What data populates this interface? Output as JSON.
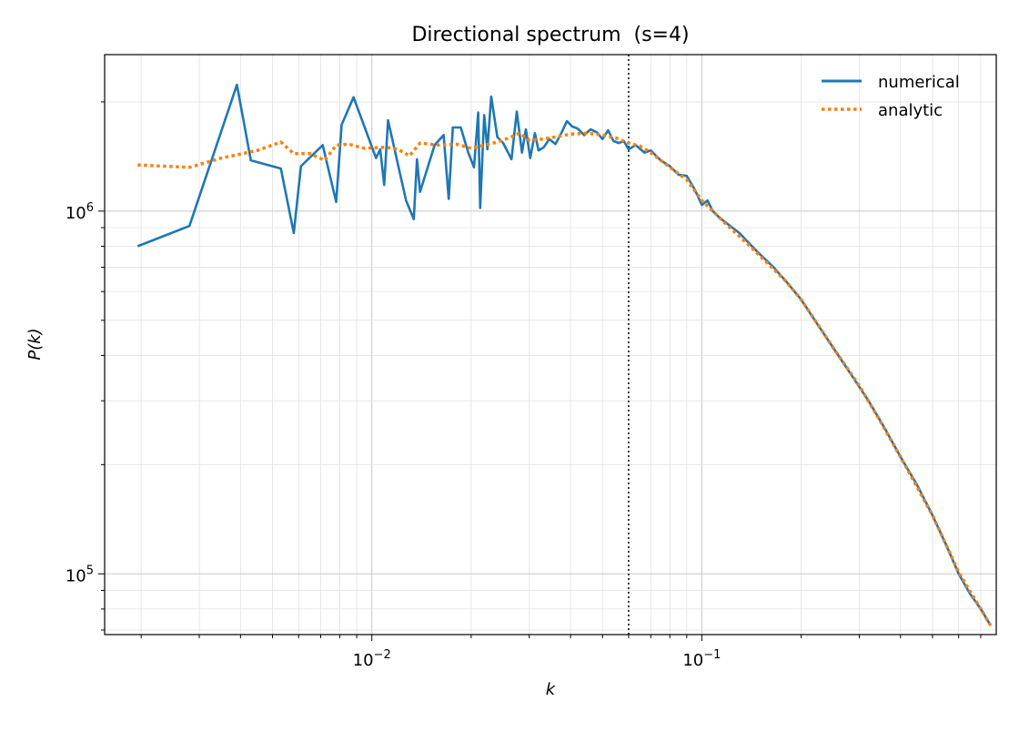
{
  "chart_data": {
    "type": "line",
    "title": "Directional spectrum  (s=4)",
    "xlabel": "k",
    "ylabel": "P(k)",
    "xscale": "log",
    "yscale": "log",
    "xlim": [
      0.00155,
      0.78
    ],
    "ylim": [
      68000,
      2700000
    ],
    "grid": true,
    "legend_position": "top-right",
    "x_ticks": [
      {
        "value": 0.01,
        "base": "10",
        "exp": "−2"
      },
      {
        "value": 0.1,
        "base": "10",
        "exp": "−1"
      }
    ],
    "y_ticks": [
      {
        "value": 100000,
        "base": "10",
        "exp": "5"
      },
      {
        "value": 1000000,
        "base": "10",
        "exp": "6"
      }
    ],
    "vline": {
      "x": 0.06,
      "style": "dotted",
      "color": "#000000"
    },
    "series": [
      {
        "name": "numerical",
        "color": "#1f77b4",
        "style": "solid",
        "points": [
          [
            0.00195,
            800000
          ],
          [
            0.0028,
            910000
          ],
          [
            0.0039,
            2230000
          ],
          [
            0.0043,
            1380000
          ],
          [
            0.0053,
            1310000
          ],
          [
            0.0058,
            870000
          ],
          [
            0.0061,
            1330000
          ],
          [
            0.0071,
            1520000
          ],
          [
            0.0078,
            1060000
          ],
          [
            0.0081,
            1730000
          ],
          [
            0.0088,
            2060000
          ],
          [
            0.0103,
            1400000
          ],
          [
            0.0106,
            1480000
          ],
          [
            0.0109,
            1180000
          ],
          [
            0.0112,
            1780000
          ],
          [
            0.0127,
            1070000
          ],
          [
            0.0134,
            950000
          ],
          [
            0.0137,
            1390000
          ],
          [
            0.014,
            1130000
          ],
          [
            0.0155,
            1520000
          ],
          [
            0.0165,
            1620000
          ],
          [
            0.0171,
            1080000
          ],
          [
            0.0176,
            1700000
          ],
          [
            0.0186,
            1700000
          ],
          [
            0.0196,
            1450000
          ],
          [
            0.0204,
            1320000
          ],
          [
            0.021,
            1870000
          ],
          [
            0.0213,
            1020000
          ],
          [
            0.0219,
            1840000
          ],
          [
            0.0224,
            1480000
          ],
          [
            0.023,
            2070000
          ],
          [
            0.024,
            1600000
          ],
          [
            0.025,
            1540000
          ],
          [
            0.0265,
            1390000
          ],
          [
            0.0275,
            1880000
          ],
          [
            0.0285,
            1450000
          ],
          [
            0.0293,
            1680000
          ],
          [
            0.0302,
            1400000
          ],
          [
            0.0312,
            1640000
          ],
          [
            0.032,
            1470000
          ],
          [
            0.0332,
            1500000
          ],
          [
            0.0345,
            1580000
          ],
          [
            0.036,
            1530000
          ],
          [
            0.0375,
            1640000
          ],
          [
            0.039,
            1770000
          ],
          [
            0.0405,
            1710000
          ],
          [
            0.042,
            1690000
          ],
          [
            0.044,
            1620000
          ],
          [
            0.046,
            1680000
          ],
          [
            0.048,
            1650000
          ],
          [
            0.05,
            1580000
          ],
          [
            0.052,
            1670000
          ],
          [
            0.054,
            1560000
          ],
          [
            0.056,
            1540000
          ],
          [
            0.058,
            1560000
          ],
          [
            0.06,
            1480000
          ],
          [
            0.063,
            1520000
          ],
          [
            0.067,
            1450000
          ],
          [
            0.07,
            1470000
          ],
          [
            0.075,
            1380000
          ],
          [
            0.08,
            1330000
          ],
          [
            0.085,
            1260000
          ],
          [
            0.09,
            1250000
          ],
          [
            0.095,
            1150000
          ],
          [
            0.1,
            1040000
          ],
          [
            0.104,
            1070000
          ],
          [
            0.108,
            1000000
          ],
          [
            0.113,
            960000
          ],
          [
            0.12,
            920000
          ],
          [
            0.13,
            870000
          ],
          [
            0.14,
            810000
          ],
          [
            0.15,
            760000
          ],
          [
            0.165,
            700000
          ],
          [
            0.18,
            640000
          ],
          [
            0.2,
            570000
          ],
          [
            0.22,
            500000
          ],
          [
            0.25,
            420000
          ],
          [
            0.28,
            360000
          ],
          [
            0.32,
            300000
          ],
          [
            0.36,
            250000
          ],
          [
            0.4,
            210000
          ],
          [
            0.45,
            175000
          ],
          [
            0.5,
            145000
          ],
          [
            0.55,
            120000
          ],
          [
            0.6,
            100000
          ],
          [
            0.65,
            88000
          ],
          [
            0.7,
            80000
          ],
          [
            0.75,
            72000
          ]
        ]
      },
      {
        "name": "analytic",
        "color": "#ff7f0e",
        "style": "dotted",
        "points": [
          [
            0.00195,
            1340000
          ],
          [
            0.0028,
            1320000
          ],
          [
            0.0035,
            1400000
          ],
          [
            0.0045,
            1470000
          ],
          [
            0.0053,
            1550000
          ],
          [
            0.0058,
            1440000
          ],
          [
            0.0065,
            1440000
          ],
          [
            0.0072,
            1380000
          ],
          [
            0.0078,
            1520000
          ],
          [
            0.0085,
            1530000
          ],
          [
            0.0095,
            1490000
          ],
          [
            0.011,
            1500000
          ],
          [
            0.012,
            1480000
          ],
          [
            0.013,
            1420000
          ],
          [
            0.014,
            1540000
          ],
          [
            0.016,
            1520000
          ],
          [
            0.018,
            1530000
          ],
          [
            0.02,
            1490000
          ],
          [
            0.022,
            1520000
          ],
          [
            0.024,
            1550000
          ],
          [
            0.026,
            1590000
          ],
          [
            0.028,
            1640000
          ],
          [
            0.03,
            1570000
          ],
          [
            0.033,
            1580000
          ],
          [
            0.036,
            1600000
          ],
          [
            0.04,
            1630000
          ],
          [
            0.045,
            1640000
          ],
          [
            0.05,
            1620000
          ],
          [
            0.055,
            1590000
          ],
          [
            0.06,
            1540000
          ],
          [
            0.065,
            1510000
          ],
          [
            0.07,
            1450000
          ],
          [
            0.08,
            1320000
          ],
          [
            0.09,
            1220000
          ],
          [
            0.1,
            1070000
          ],
          [
            0.12,
            910000
          ],
          [
            0.14,
            800000
          ],
          [
            0.16,
            710000
          ],
          [
            0.18,
            640000
          ],
          [
            0.2,
            570000
          ],
          [
            0.25,
            420000
          ],
          [
            0.3,
            330000
          ],
          [
            0.35,
            260000
          ],
          [
            0.4,
            210000
          ],
          [
            0.5,
            145000
          ],
          [
            0.6,
            101000
          ],
          [
            0.7,
            80000
          ],
          [
            0.75,
            72000
          ]
        ]
      }
    ]
  }
}
